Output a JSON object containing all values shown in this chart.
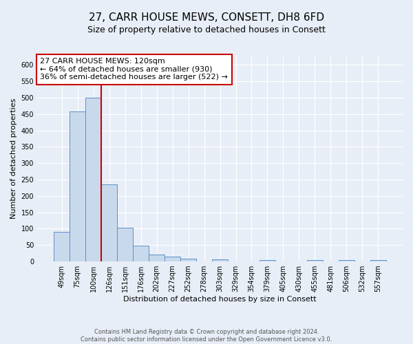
{
  "title": "27, CARR HOUSE MEWS, CONSETT, DH8 6FD",
  "subtitle": "Size of property relative to detached houses in Consett",
  "xlabel": "Distribution of detached houses by size in Consett",
  "ylabel": "Number of detached properties",
  "bar_labels": [
    "49sqm",
    "75sqm",
    "100sqm",
    "126sqm",
    "151sqm",
    "176sqm",
    "202sqm",
    "227sqm",
    "252sqm",
    "278sqm",
    "303sqm",
    "329sqm",
    "354sqm",
    "379sqm",
    "405sqm",
    "430sqm",
    "455sqm",
    "481sqm",
    "506sqm",
    "532sqm",
    "557sqm"
  ],
  "bar_values": [
    90,
    457,
    500,
    235,
    104,
    48,
    21,
    14,
    8,
    0,
    6,
    0,
    0,
    5,
    0,
    0,
    5,
    0,
    5,
    0,
    5
  ],
  "bar_color": "#c9d9ec",
  "bar_edge_color": "#5b8fc9",
  "vline_x": 2.5,
  "vline_color": "#cc0000",
  "annotation_text": "27 CARR HOUSE MEWS: 120sqm\n← 64% of detached houses are smaller (930)\n36% of semi-detached houses are larger (522) →",
  "annotation_box_color": "white",
  "annotation_box_edge_color": "#cc0000",
  "ylim": [
    0,
    630
  ],
  "yticks": [
    0,
    50,
    100,
    150,
    200,
    250,
    300,
    350,
    400,
    450,
    500,
    550,
    600
  ],
  "footer_text": "Contains HM Land Registry data © Crown copyright and database right 2024.\nContains public sector information licensed under the Open Government Licence v3.0.",
  "background_color": "#e8eef7",
  "grid_color": "white",
  "title_fontsize": 11,
  "subtitle_fontsize": 9,
  "annotation_fontsize": 8,
  "footer_fontsize": 6,
  "ylabel_fontsize": 8,
  "xlabel_fontsize": 8,
  "tick_fontsize": 7
}
